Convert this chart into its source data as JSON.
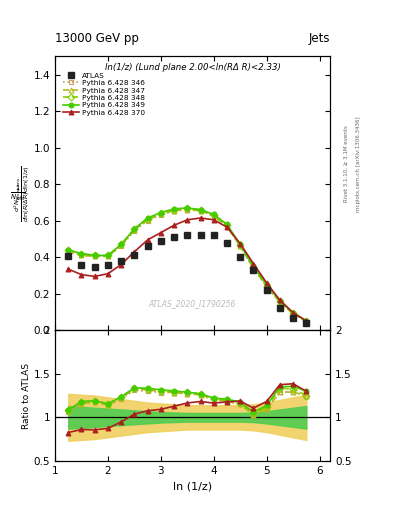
{
  "title_top_left": "13000 GeV pp",
  "title_top_right": "Jets",
  "plot_title": "ln(1/z) (Lund plane 2.00<ln(RΔ R)<2.33)",
  "watermark": "ATLAS_2020_I1790256",
  "right_label_top": "Rivet 3.1.10, ≥ 3.1M events",
  "right_label_bot": "mcplots.cern.ch [arXiv:1306.3436]",
  "xlabel": "ln (1/z)",
  "ylabel_ratio": "Ratio to ATLAS",
  "xlim": [
    1.0,
    6.2
  ],
  "ylim_main": [
    0.0,
    1.5
  ],
  "ylim_ratio": [
    0.5,
    2.0
  ],
  "atlas_x": [
    1.25,
    1.5,
    1.75,
    2.0,
    2.25,
    2.5,
    2.75,
    3.0,
    3.25,
    3.5,
    3.75,
    4.0,
    4.25,
    4.5,
    4.75,
    5.0,
    5.25,
    5.5,
    5.75
  ],
  "atlas_y": [
    0.405,
    0.355,
    0.345,
    0.355,
    0.38,
    0.415,
    0.46,
    0.49,
    0.51,
    0.52,
    0.52,
    0.52,
    0.48,
    0.4,
    0.33,
    0.22,
    0.12,
    0.07,
    0.04
  ],
  "p346_x": [
    1.25,
    1.5,
    1.75,
    2.0,
    2.25,
    2.5,
    2.75,
    3.0,
    3.25,
    3.5,
    3.75,
    4.0,
    4.25,
    4.5,
    4.75,
    5.0,
    5.25,
    5.5,
    5.75
  ],
  "p346_y": [
    0.43,
    0.41,
    0.405,
    0.405,
    0.46,
    0.545,
    0.6,
    0.63,
    0.655,
    0.66,
    0.655,
    0.625,
    0.57,
    0.46,
    0.34,
    0.24,
    0.155,
    0.09,
    0.05
  ],
  "p346_color": "#c8a060",
  "p346_ls": "dotted",
  "p346_marker": "s",
  "p347_x": [
    1.25,
    1.5,
    1.75,
    2.0,
    2.25,
    2.5,
    2.75,
    3.0,
    3.25,
    3.5,
    3.75,
    4.0,
    4.25,
    4.5,
    4.75,
    5.0,
    5.25,
    5.5,
    5.75
  ],
  "p347_y": [
    0.435,
    0.41,
    0.405,
    0.405,
    0.465,
    0.55,
    0.605,
    0.635,
    0.655,
    0.66,
    0.655,
    0.625,
    0.57,
    0.46,
    0.34,
    0.24,
    0.155,
    0.09,
    0.05
  ],
  "p347_color": "#b8b820",
  "p347_ls": "dashed",
  "p347_marker": "^",
  "p348_x": [
    1.25,
    1.5,
    1.75,
    2.0,
    2.25,
    2.5,
    2.75,
    3.0,
    3.25,
    3.5,
    3.75,
    4.0,
    4.25,
    4.5,
    4.75,
    5.0,
    5.25,
    5.5,
    5.75
  ],
  "p348_y": [
    0.44,
    0.42,
    0.41,
    0.41,
    0.47,
    0.555,
    0.61,
    0.64,
    0.66,
    0.67,
    0.66,
    0.63,
    0.575,
    0.465,
    0.345,
    0.245,
    0.16,
    0.093,
    0.05
  ],
  "p348_color": "#88cc00",
  "p348_ls": "dashed",
  "p348_marker": "D",
  "p349_x": [
    1.25,
    1.5,
    1.75,
    2.0,
    2.25,
    2.5,
    2.75,
    3.0,
    3.25,
    3.5,
    3.75,
    4.0,
    4.25,
    4.5,
    4.75,
    5.0,
    5.25,
    5.5,
    5.75
  ],
  "p349_y": [
    0.44,
    0.42,
    0.41,
    0.41,
    0.47,
    0.555,
    0.615,
    0.645,
    0.665,
    0.67,
    0.66,
    0.635,
    0.58,
    0.47,
    0.35,
    0.25,
    0.162,
    0.095,
    0.052
  ],
  "p349_color": "#44cc00",
  "p349_ls": "solid",
  "p349_marker": "o",
  "p370_x": [
    1.25,
    1.5,
    1.75,
    2.0,
    2.25,
    2.5,
    2.75,
    3.0,
    3.25,
    3.5,
    3.75,
    4.0,
    4.25,
    4.5,
    4.75,
    5.0,
    5.25,
    5.5,
    5.75
  ],
  "p370_y": [
    0.335,
    0.305,
    0.295,
    0.31,
    0.36,
    0.43,
    0.495,
    0.535,
    0.575,
    0.605,
    0.615,
    0.605,
    0.565,
    0.475,
    0.365,
    0.26,
    0.165,
    0.097,
    0.052
  ],
  "p370_color": "#aa2020",
  "p370_ls": "solid",
  "p370_marker": "^",
  "ratio_346_y": [
    1.065,
    1.155,
    1.175,
    1.14,
    1.21,
    1.31,
    1.3,
    1.285,
    1.285,
    1.27,
    1.26,
    1.2,
    1.185,
    1.15,
    1.03,
    1.09,
    1.29,
    1.29,
    1.25
  ],
  "ratio_347_y": [
    1.075,
    1.155,
    1.175,
    1.14,
    1.22,
    1.325,
    1.315,
    1.295,
    1.285,
    1.27,
    1.26,
    1.2,
    1.185,
    1.15,
    1.03,
    1.09,
    1.29,
    1.29,
    1.25
  ],
  "ratio_348_y": [
    1.085,
    1.18,
    1.19,
    1.155,
    1.236,
    1.337,
    1.326,
    1.306,
    1.294,
    1.288,
    1.27,
    1.212,
    1.198,
    1.163,
    1.045,
    1.114,
    1.333,
    1.329,
    1.25
  ],
  "ratio_349_y": [
    1.085,
    1.18,
    1.19,
    1.155,
    1.236,
    1.337,
    1.335,
    1.316,
    1.304,
    1.288,
    1.27,
    1.222,
    1.208,
    1.175,
    1.06,
    1.136,
    1.35,
    1.357,
    1.3
  ],
  "ratio_370_y": [
    0.825,
    0.86,
    0.856,
    0.873,
    0.947,
    1.036,
    1.075,
    1.092,
    1.128,
    1.165,
    1.182,
    1.163,
    1.177,
    1.188,
    1.106,
    1.182,
    1.375,
    1.386,
    1.3
  ],
  "band_yellow_lo": [
    0.73,
    0.74,
    0.75,
    0.77,
    0.79,
    0.81,
    0.83,
    0.84,
    0.85,
    0.86,
    0.86,
    0.86,
    0.86,
    0.86,
    0.85,
    0.83,
    0.8,
    0.77,
    0.74
  ],
  "band_yellow_hi": [
    1.27,
    1.26,
    1.25,
    1.23,
    1.21,
    1.19,
    1.17,
    1.16,
    1.15,
    1.14,
    1.14,
    1.14,
    1.14,
    1.14,
    1.15,
    1.17,
    1.2,
    1.23,
    1.26
  ],
  "band_green_lo": [
    0.87,
    0.88,
    0.89,
    0.9,
    0.91,
    0.92,
    0.93,
    0.94,
    0.945,
    0.95,
    0.95,
    0.95,
    0.95,
    0.95,
    0.945,
    0.93,
    0.91,
    0.89,
    0.87
  ],
  "band_green_hi": [
    1.13,
    1.12,
    1.11,
    1.1,
    1.09,
    1.08,
    1.07,
    1.06,
    1.055,
    1.05,
    1.05,
    1.05,
    1.05,
    1.05,
    1.055,
    1.07,
    1.09,
    1.11,
    1.13
  ],
  "atlas_color": "#222222",
  "line_width": 1.2
}
